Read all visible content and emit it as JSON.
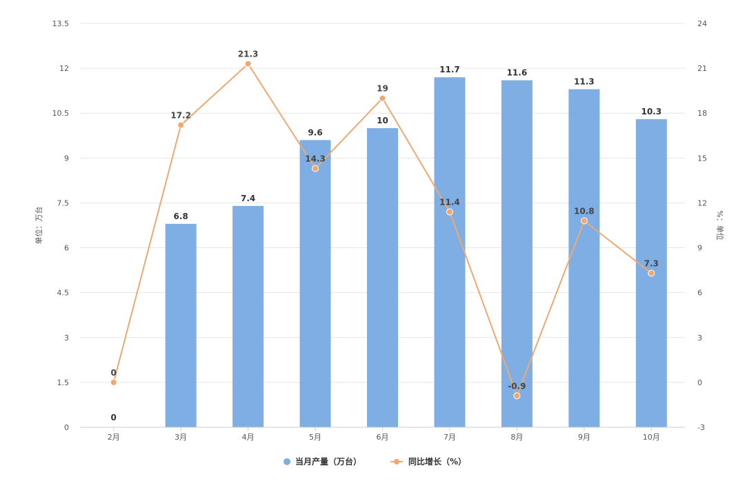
{
  "chart_data": {
    "type": "bar",
    "categories": [
      "2月",
      "3月",
      "4月",
      "5月",
      "6月",
      "7月",
      "8月",
      "9月",
      "10月"
    ],
    "series": [
      {
        "name": "当月产量（万台）",
        "type": "bar",
        "axis": "left",
        "values": [
          0,
          6.8,
          7.4,
          9.6,
          10,
          11.7,
          11.6,
          11.3,
          10.3
        ],
        "labels": [
          "0",
          "6.8",
          "7.4",
          "9.6",
          "10",
          "11.7",
          "11.6",
          "11.3",
          "10.3"
        ]
      },
      {
        "name": "同比增长（%）",
        "type": "line",
        "axis": "right",
        "values": [
          0,
          17.2,
          21.3,
          14.3,
          19,
          11.4,
          -0.9,
          10.8,
          7.3
        ],
        "labels": [
          "0",
          "17.2",
          "21.3",
          "14.3",
          "19",
          "11.4",
          "-0.9",
          "10.8",
          "7.3"
        ]
      }
    ],
    "ylabel": "单位：万台",
    "y2label": "%：单位",
    "ylim": [
      0,
      13.5
    ],
    "y2lim": [
      -3,
      24
    ],
    "yticks": [
      "0",
      "1.5",
      "3",
      "4.5",
      "6",
      "7.5",
      "9",
      "10.5",
      "12",
      "13.5"
    ],
    "y2ticks": [
      "-3",
      "0",
      "3",
      "6",
      "9",
      "12",
      "15",
      "18",
      "21",
      "24"
    ],
    "grid": true,
    "legend": "bottom-center",
    "colors": {
      "bar": "#7eaee3",
      "line": "#f0a870",
      "grid": "#e6e6e6",
      "axis": "#cccccc"
    }
  }
}
